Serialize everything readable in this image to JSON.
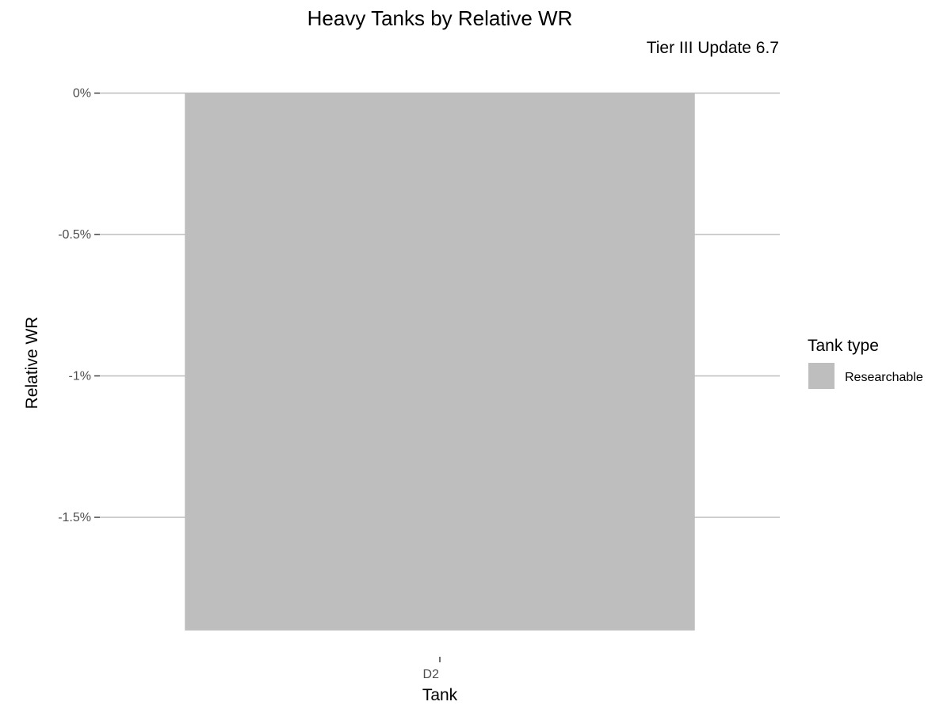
{
  "chart_data": {
    "type": "bar",
    "title": "Heavy Tanks by Relative WR",
    "subtitle": "Tier III Update 6.7",
    "xlabel": "Tank",
    "ylabel": "Relative WR",
    "categories": [
      "D2"
    ],
    "series": [
      {
        "values": [
          -1.9
        ],
        "group": "Researchable"
      }
    ],
    "ylim": [
      -1.9,
      0
    ],
    "yticks": [
      0,
      -0.5,
      -1,
      -1.5
    ],
    "ytick_labels": [
      "0%",
      "-0.5%",
      "-1%",
      "-1.5%"
    ],
    "legend": {
      "title": "Tank type",
      "position": "right",
      "entries": [
        {
          "label": "Researchable",
          "color": "#bebebe"
        }
      ]
    },
    "grid": true,
    "colors": {
      "bar": "#bebebe",
      "grid": "#bdbdbd",
      "tick": "#333333"
    }
  }
}
